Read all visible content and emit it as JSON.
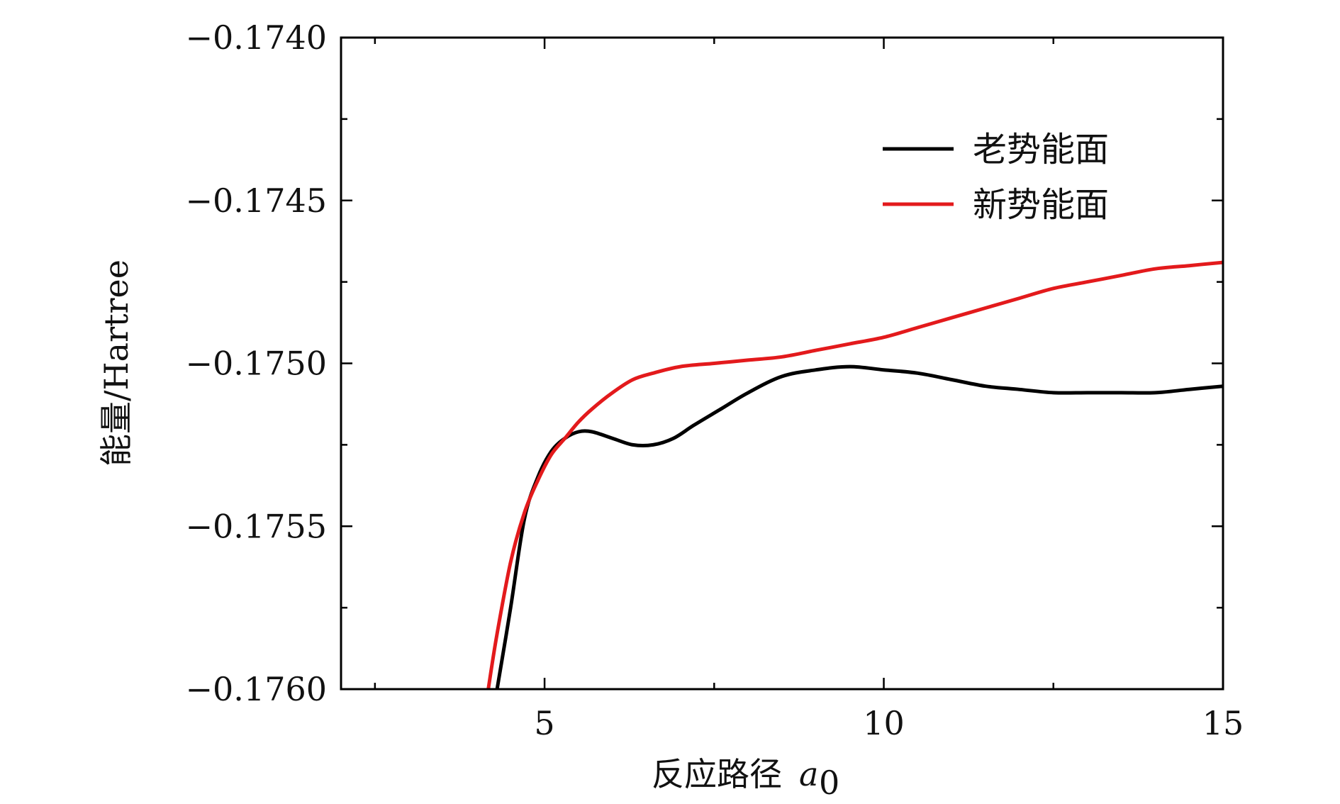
{
  "chart_data": {
    "type": "line",
    "xlabel": "反应路径",
    "xlabel_unit": "a",
    "xlabel_unit_sub": "0",
    "ylabel": "能量/Hartree",
    "xlim": [
      2,
      15
    ],
    "ylim": [
      -0.176,
      -0.174
    ],
    "x_ticks": [
      5,
      10,
      15
    ],
    "x_tick_labels": [
      "5",
      "10",
      "15"
    ],
    "x_minor_ticks": [
      2.5,
      7.5,
      12.5
    ],
    "y_ticks": [
      -0.176,
      -0.1755,
      -0.175,
      -0.1745,
      -0.174
    ],
    "y_tick_labels": [
      "−0.1760",
      "−0.1755",
      "−0.1750",
      "−0.1745",
      "−0.1740"
    ],
    "y_minor_ticks": [
      -0.17575,
      -0.17525,
      -0.17475,
      -0.17425
    ],
    "grid": false,
    "legend_position": "top-right",
    "series": [
      {
        "name": "老势能面",
        "color": "#000000",
        "x": [
          4.3,
          4.5,
          4.7,
          4.9,
          5.1,
          5.3,
          5.5,
          5.7,
          6.0,
          6.3,
          6.6,
          6.9,
          7.2,
          7.6,
          8.0,
          8.5,
          9.0,
          9.5,
          10.0,
          10.5,
          11.0,
          11.5,
          12.0,
          12.5,
          13.0,
          13.5,
          14.0,
          14.5,
          15.0
        ],
        "y": [
          -0.176,
          -0.17575,
          -0.17548,
          -0.17535,
          -0.17527,
          -0.17523,
          -0.17521,
          -0.17521,
          -0.17523,
          -0.17525,
          -0.17525,
          -0.17523,
          -0.17519,
          -0.17514,
          -0.17509,
          -0.17504,
          -0.17502,
          -0.17501,
          -0.17502,
          -0.17503,
          -0.17505,
          -0.17507,
          -0.17508,
          -0.17509,
          -0.17509,
          -0.17509,
          -0.17509,
          -0.17508,
          -0.17507
        ]
      },
      {
        "name": "新势能面",
        "color": "#e31a1c",
        "x": [
          4.17,
          4.3,
          4.5,
          4.7,
          4.9,
          5.1,
          5.3,
          5.5,
          5.7,
          6.0,
          6.3,
          6.6,
          7.0,
          7.5,
          8.0,
          8.5,
          9.0,
          9.5,
          10.0,
          10.5,
          11.0,
          11.5,
          12.0,
          12.5,
          13.0,
          13.5,
          14.0,
          14.5,
          15.0
        ],
        "y": [
          -0.176,
          -0.17583,
          -0.17561,
          -0.17546,
          -0.17536,
          -0.17528,
          -0.17523,
          -0.17518,
          -0.17514,
          -0.17509,
          -0.17505,
          -0.17503,
          -0.17501,
          -0.175,
          -0.17499,
          -0.17498,
          -0.17496,
          -0.17494,
          -0.17492,
          -0.17489,
          -0.17486,
          -0.17483,
          -0.1748,
          -0.17477,
          -0.17475,
          -0.17473,
          -0.17471,
          -0.1747,
          -0.17469
        ]
      }
    ]
  }
}
